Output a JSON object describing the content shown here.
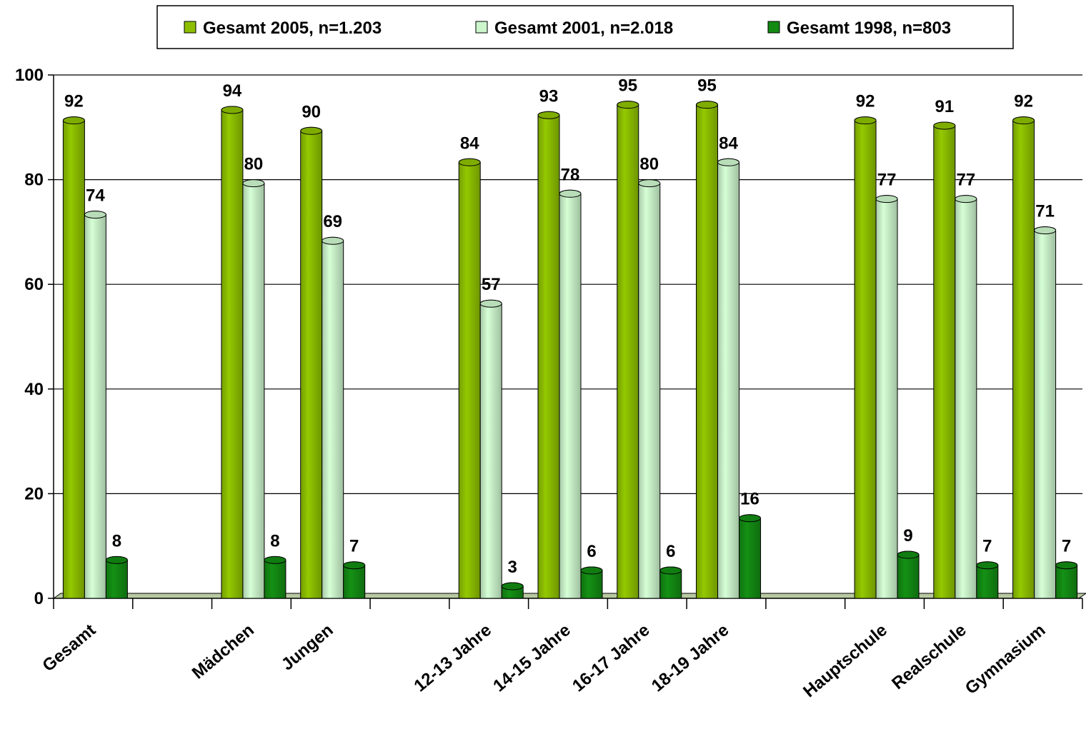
{
  "chart_data": {
    "type": "bar",
    "title": "",
    "xlabel": "",
    "ylabel": "",
    "ylim": [
      0,
      100
    ],
    "yticks": [
      "0",
      "20",
      "40",
      "60",
      "80",
      "100"
    ],
    "grid": true,
    "legend_position": "top",
    "slots": [
      "Gesamt",
      "",
      "Mädchen",
      "Jungen",
      "",
      "12-13 Jahre",
      "14-15 Jahre",
      "16-17 Jahre",
      "18-19 Jahre",
      "",
      "Hauptschule",
      "Realschule",
      "Gymnasium"
    ],
    "series": [
      {
        "name": "Gesamt 2005, n=1.203",
        "color": "#8DBF00",
        "values": [
          92,
          null,
          94,
          90,
          null,
          84,
          93,
          95,
          95,
          null,
          92,
          91,
          92
        ]
      },
      {
        "name": "Gesamt 2001, n=2.018",
        "color": "#CCF5CC",
        "values": [
          74,
          null,
          80,
          69,
          null,
          57,
          78,
          80,
          84,
          null,
          77,
          77,
          71
        ]
      },
      {
        "name": "Gesamt 1998, n=803",
        "color": "#138A13",
        "values": [
          8,
          null,
          8,
          7,
          null,
          3,
          6,
          6,
          16,
          null,
          9,
          7,
          7
        ]
      }
    ]
  }
}
